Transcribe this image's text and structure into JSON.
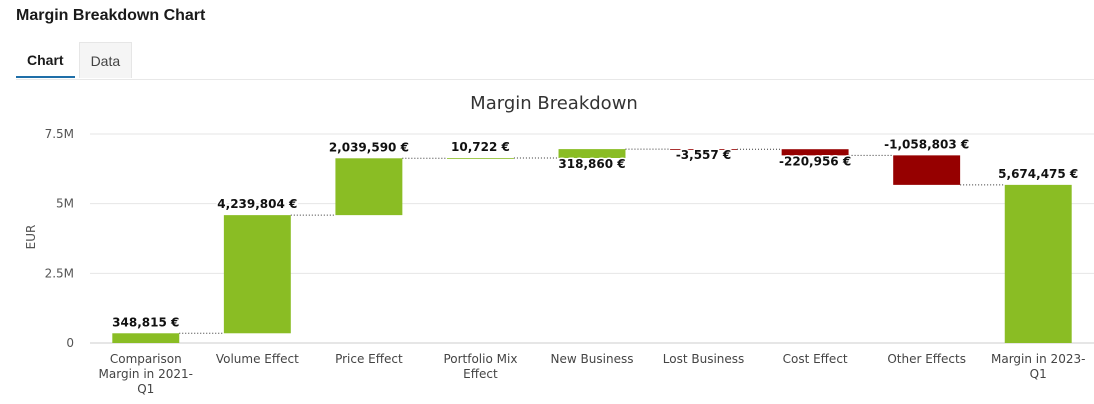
{
  "page": {
    "title": "Margin Breakdown Chart"
  },
  "tabs": [
    {
      "label": "Chart",
      "active": true
    },
    {
      "label": "Data",
      "active": false
    }
  ],
  "chart_data": {
    "type": "waterfall",
    "title": "Margin Breakdown",
    "ylabel": "EUR",
    "xlabel": "",
    "ylim": [
      0,
      7500000
    ],
    "yticks": [
      {
        "value": 0,
        "label": "0"
      },
      {
        "value": 2500000,
        "label": "2.5M"
      },
      {
        "value": 5000000,
        "label": "5M"
      },
      {
        "value": 7500000,
        "label": "7.5M"
      }
    ],
    "grid": true,
    "categories": [
      "Comparison Margin in 2021-Q1",
      "Volume Effect",
      "Price Effect",
      "Portfolio Mix Effect",
      "New Business",
      "Lost Business",
      "Cost Effect",
      "Other Effects",
      "Margin in 2023-Q1"
    ],
    "category_lines": [
      [
        "Comparison",
        "Margin in 2021-",
        "Q1"
      ],
      [
        "Volume Effect"
      ],
      [
        "Price Effect"
      ],
      [
        "Portfolio Mix",
        "Effect"
      ],
      [
        "New Business"
      ],
      [
        "Lost Business"
      ],
      [
        "Cost Effect"
      ],
      [
        "Other Effects"
      ],
      [
        "Margin in 2023-",
        "Q1"
      ]
    ],
    "values": [
      348815,
      4239804,
      2039590,
      10722,
      318860,
      -3557,
      -220956,
      -1058803,
      5674475
    ],
    "kinds": [
      "total",
      "delta",
      "delta",
      "delta",
      "delta",
      "delta",
      "delta",
      "delta",
      "total"
    ],
    "data_labels": [
      "348,815 €",
      "4,239,804 €",
      "2,039,590 €",
      "10,722 €",
      "318,860 €",
      "-3,557 €",
      "-220,956 €",
      "-1,058,803 €",
      "5,674,475 €"
    ],
    "colors": {
      "positive": "#8abd24",
      "negative": "#960000",
      "total": "#8abd24"
    }
  }
}
